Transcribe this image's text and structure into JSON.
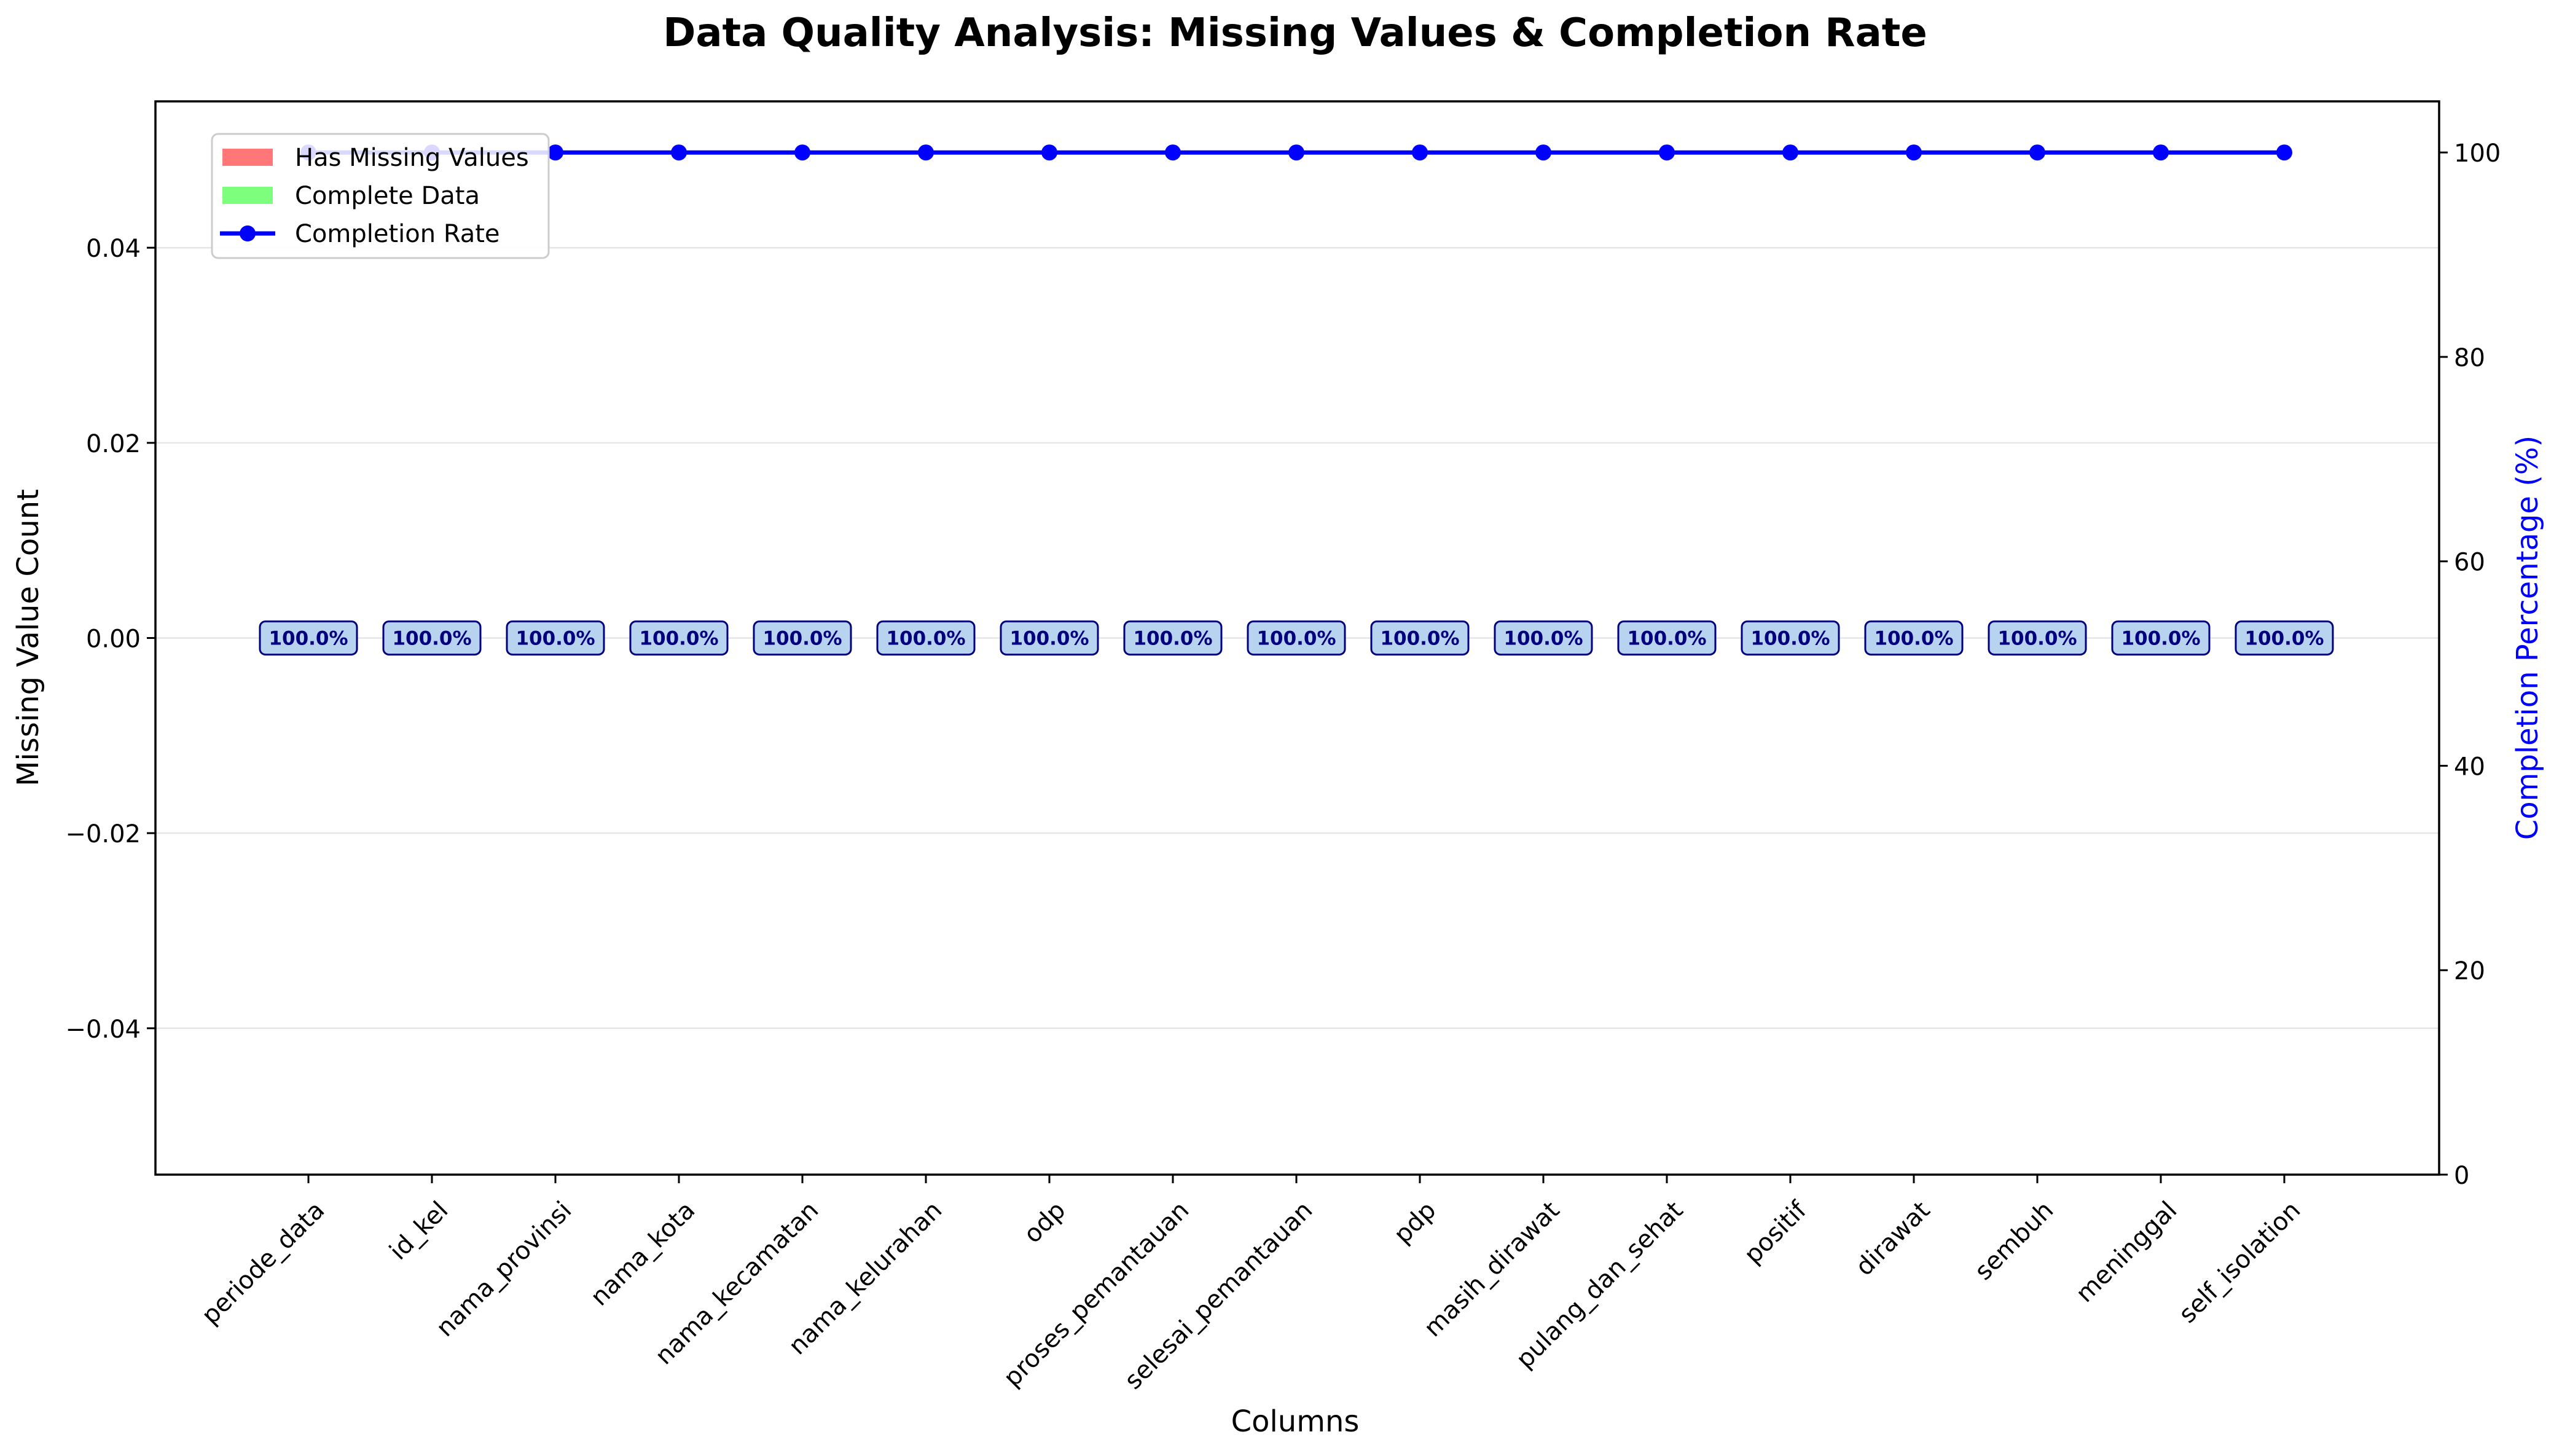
{
  "chart_data": {
    "type": "bar",
    "title": "Data Quality Analysis: Missing Values & Completion Rate",
    "xlabel": "Columns",
    "ylabel": "Missing Value Count",
    "y2label": "Completion Percentage (%)",
    "categories": [
      "periode_data",
      "id_kel",
      "nama_provinsi",
      "nama_kota",
      "nama_kecamatan",
      "nama_kelurahan",
      "odp",
      "proses_pemantauan",
      "selesai_pemantauan",
      "pdp",
      "masih_dirawat",
      "pulang_dan_sehat",
      "positif",
      "dirawat",
      "sembuh",
      "meninggal",
      "self_isolation"
    ],
    "series": [
      {
        "name": "Has Missing Values",
        "kind": "bar",
        "axis": "left",
        "color": "#ff7777",
        "values": [
          0,
          0,
          0,
          0,
          0,
          0,
          0,
          0,
          0,
          0,
          0,
          0,
          0,
          0,
          0,
          0,
          0
        ]
      },
      {
        "name": "Complete Data",
        "kind": "bar",
        "axis": "left",
        "color": "#7dff7d",
        "values": [
          0,
          0,
          0,
          0,
          0,
          0,
          0,
          0,
          0,
          0,
          0,
          0,
          0,
          0,
          0,
          0,
          0
        ]
      },
      {
        "name": "Completion Rate",
        "kind": "line",
        "axis": "right",
        "color": "#0000ff",
        "values": [
          100,
          100,
          100,
          100,
          100,
          100,
          100,
          100,
          100,
          100,
          100,
          100,
          100,
          100,
          100,
          100,
          100
        ]
      }
    ],
    "data_labels": [
      "100.0%",
      "100.0%",
      "100.0%",
      "100.0%",
      "100.0%",
      "100.0%",
      "100.0%",
      "100.0%",
      "100.0%",
      "100.0%",
      "100.0%",
      "100.0%",
      "100.0%",
      "100.0%",
      "100.0%",
      "100.0%",
      "100.0%"
    ],
    "ylim": [
      -0.055,
      0.055
    ],
    "yticks": [
      -0.04,
      -0.02,
      0.0,
      0.02,
      0.04
    ],
    "ytick_labels": [
      "−0.04",
      "−0.02",
      "0.00",
      "0.02",
      "0.04"
    ],
    "y2lim": [
      0,
      105
    ],
    "y2ticks": [
      0,
      20,
      40,
      60,
      80,
      100
    ],
    "y2tick_labels": [
      "0",
      "20",
      "40",
      "60",
      "80",
      "100"
    ],
    "grid": "horizontal",
    "legend_position": "upper-left",
    "colors": {
      "label_box_fill": "#b7d3f0",
      "label_box_edge": "#00007f",
      "label_text": "#00007f",
      "y2_axis_text": "#0000ff"
    }
  }
}
